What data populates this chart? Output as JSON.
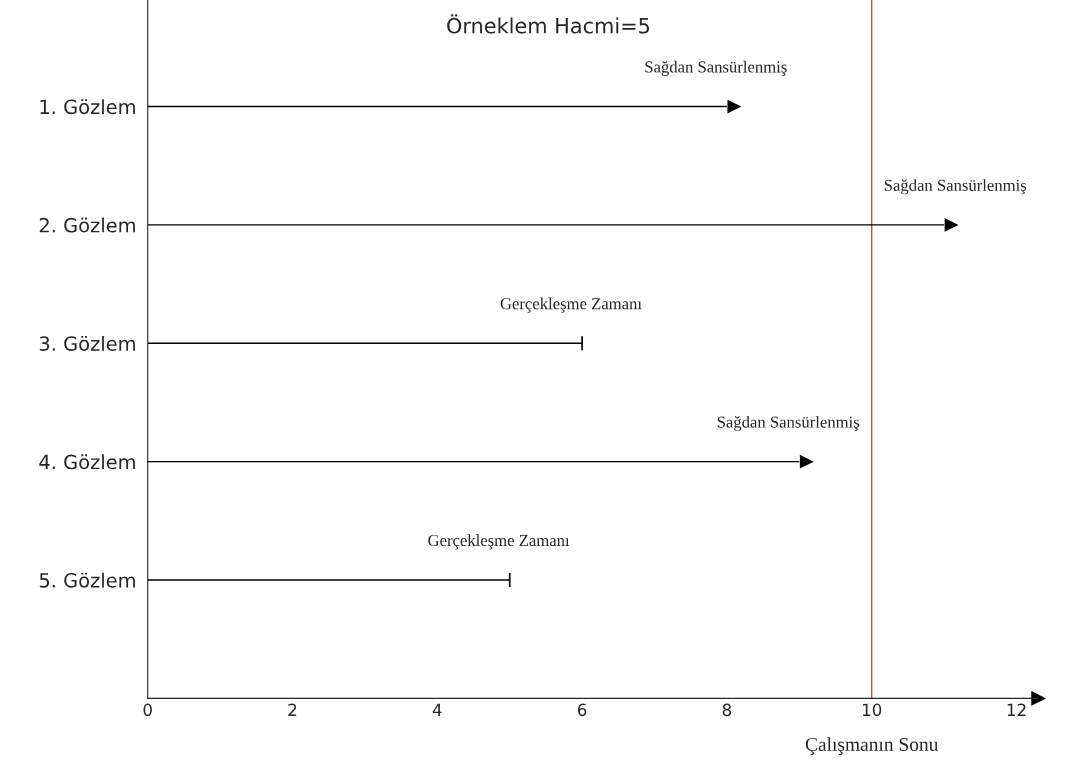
{
  "chart_data": {
    "type": "bar",
    "orientation": "horizontal",
    "title": "Örneklem Hacmi=5",
    "categories": [
      "1. Gözlem",
      "2. Gözlem",
      "3. Gözlem",
      "4. Gözlem",
      "5. Gözlem"
    ],
    "series": [
      {
        "color": "#000000",
        "marker": "triangle",
        "values": [
          8,
          11,
          null,
          9,
          null
        ]
      },
      {
        "color": "#000000",
        "marker": "vline",
        "values": [
          null,
          null,
          6,
          null,
          5
        ]
      }
    ],
    "xlim": [
      0,
      12.3
    ],
    "xticks": [
      0,
      2,
      4,
      6,
      8,
      10,
      12
    ],
    "ref_lines": [
      {
        "axis": "x",
        "value": 10,
        "label": "Çalışmanın Sonu",
        "color": "#c0504d"
      }
    ],
    "annotations": [
      {
        "text": "Sağdan Sansürlenmiş",
        "x": 8,
        "y": "1. Gözlem"
      },
      {
        "text": "Sağdan Sansürlenmiş",
        "x": 11,
        "y": "2. Gözlem"
      },
      {
        "text": "Gerçekleşme Zamanı",
        "x": 6,
        "y": "3. Gözlem"
      },
      {
        "text": "Sağdan Sansürlenmiş",
        "x": 9,
        "y": "4. Gözlem"
      },
      {
        "text": "Gerçekleşme Zamanı",
        "x": 5,
        "y": "5. Gözlem"
      }
    ],
    "grid": false,
    "legend": false
  }
}
